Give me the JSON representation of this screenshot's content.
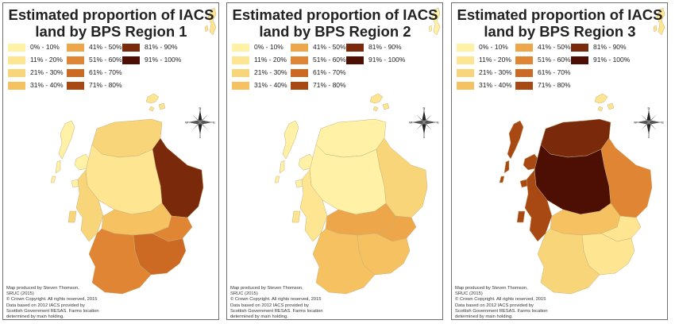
{
  "palette": {
    "c1": "#fff1a6",
    "c2": "#fde591",
    "c3": "#f9d57a",
    "c4": "#f5c161",
    "c5": "#eda649",
    "c6": "#df8533",
    "c7": "#cc6a24",
    "c8": "#a84812",
    "c9": "#7a2a0a",
    "c10": "#4d0f04"
  },
  "legend": [
    {
      "label": "0% - 10%",
      "color": "c1"
    },
    {
      "label": "11% - 20%",
      "color": "c2"
    },
    {
      "label": "21% - 30%",
      "color": "c3"
    },
    {
      "label": "31% - 40%",
      "color": "c4"
    },
    {
      "label": "41% - 50%",
      "color": "c5"
    },
    {
      "label": "51% - 60%",
      "color": "c6"
    },
    {
      "label": "61% - 70%",
      "color": "c7"
    },
    {
      "label": "71% - 80%",
      "color": "c8"
    },
    {
      "label": "81% - 90%",
      "color": "c9"
    },
    {
      "label": "91% - 100%",
      "color": "c10"
    }
  ],
  "credits": [
    "Map produced by Steven Thomson,",
    "SRUC (2015)",
    "© Crown Copyright. All rights reserved,  2015",
    "Data based on 2012 IACS provided by",
    "Scottish Government RESAS.  Farms location",
    "determined by main holding."
  ],
  "compass": {
    "north": "N",
    "south": "S",
    "east": "E",
    "west": "W"
  },
  "maps": [
    {
      "title_line1": "Estimated proportion of IACS",
      "title_line2": "land by BPS Region 1",
      "region_colors": {
        "orkney": "c2",
        "shetland": "c2",
        "islands": "c1",
        "north": "c3",
        "northeast": "c9",
        "highlands": "c2",
        "argyll": "c3",
        "central": "c4",
        "east": "c6",
        "borders": "c7",
        "southwest": "c6"
      }
    },
    {
      "title_line1": "Estimated proportion of IACS",
      "title_line2": "land by BPS Region 2",
      "region_colors": {
        "orkney": "c2",
        "shetland": "c1",
        "islands": "c1",
        "north": "c1",
        "northeast": "c3",
        "highlands": "c1",
        "argyll": "c2",
        "central": "c5",
        "east": "c5",
        "borders": "c4",
        "southwest": "c4"
      }
    },
    {
      "title_line1": "Estimated proportion of IACS",
      "title_line2": "land by BPS Region 3",
      "region_colors": {
        "orkney": "c2",
        "shetland": "c2",
        "islands": "c8",
        "north": "c9",
        "northeast": "c6",
        "highlands": "c10",
        "argyll": "c8",
        "central": "c4",
        "east": "c2",
        "borders": "c2",
        "southwest": "c3"
      }
    }
  ]
}
